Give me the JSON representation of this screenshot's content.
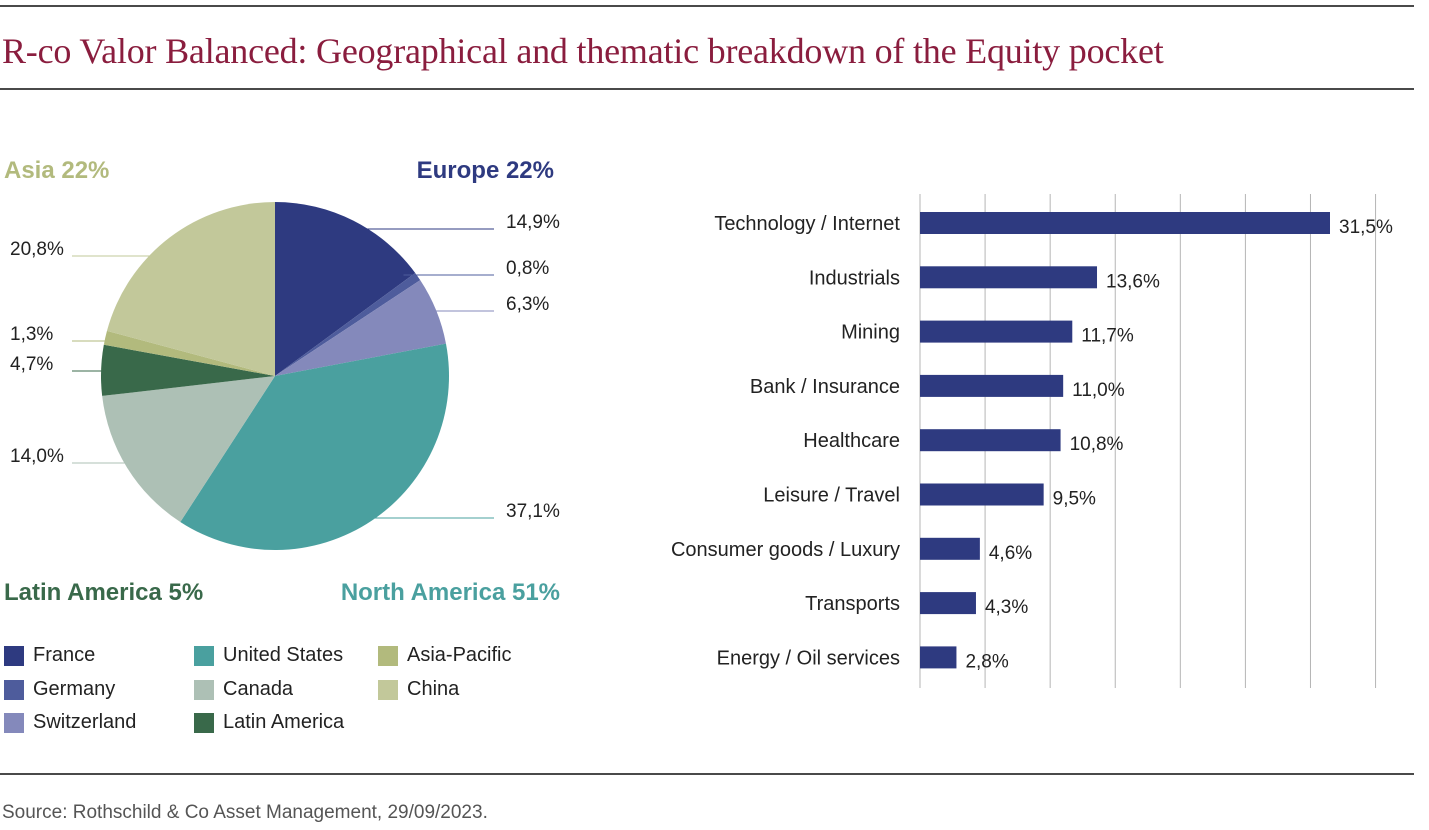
{
  "header": {
    "title": "R-co Valor Balanced: Geographical and thematic breakdown of the Equity pocket"
  },
  "footer": {
    "source": "Source: Rothschild & Co Asset Management, 29/09/2023."
  },
  "colors": {
    "title": "#8a1d3e",
    "France": "#2e3a80",
    "Germany": "#4e5c9c",
    "Switzerland": "#8489bb",
    "United States": "#4aa09f",
    "Canada": "#adc0b5",
    "Latin America": "#39694a",
    "Asia-Pacific": "#b2ba7d",
    "China": "#c2c89a",
    "bars": "#2e3a80"
  },
  "chart_data": [
    {
      "type": "pie",
      "slices": [
        {
          "name": "France",
          "value": 14.9,
          "label": "14,9%"
        },
        {
          "name": "Germany",
          "value": 0.8,
          "label": "0,8%"
        },
        {
          "name": "Switzerland",
          "value": 6.3,
          "label": "6,3%"
        },
        {
          "name": "United States",
          "value": 37.1,
          "label": "37,1%"
        },
        {
          "name": "Canada",
          "value": 14.0,
          "label": "14,0%"
        },
        {
          "name": "Latin America",
          "value": 4.7,
          "label": "4,7%"
        },
        {
          "name": "Asia-Pacific",
          "value": 1.3,
          "label": "1,3%"
        },
        {
          "name": "China",
          "value": 20.8,
          "label": "20,8%"
        }
      ],
      "region_labels": [
        {
          "text": "Asia 22%",
          "color": "#b2ba7d"
        },
        {
          "text": "Europe 22%",
          "color": "#2e3a80"
        },
        {
          "text": "Latin America 5%",
          "color": "#39694a"
        },
        {
          "text": "North America 51%",
          "color": "#4aa09f"
        }
      ],
      "legend": [
        "France",
        "Germany",
        "Switzerland",
        "United States",
        "Canada",
        "Latin America",
        "Asia-Pacific",
        "China"
      ]
    },
    {
      "type": "bar",
      "orientation": "horizontal",
      "categories": [
        "Technology / Internet",
        "Industrials",
        "Mining",
        "Bank / Insurance",
        "Healthcare",
        "Leisure / Travel",
        "Consumer goods / Luxury",
        "Transports",
        "Energy / Oil services"
      ],
      "values": [
        31.5,
        13.6,
        11.7,
        11.0,
        10.8,
        9.5,
        4.6,
        4.3,
        2.8
      ],
      "data_labels": [
        "31,5%",
        "13,6%",
        "11,7%",
        "11,0%",
        "10,8%",
        "9,5%",
        "4,6%",
        "4,3%",
        "2,8%"
      ],
      "xlim": [
        0,
        35
      ],
      "grid": true
    }
  ]
}
